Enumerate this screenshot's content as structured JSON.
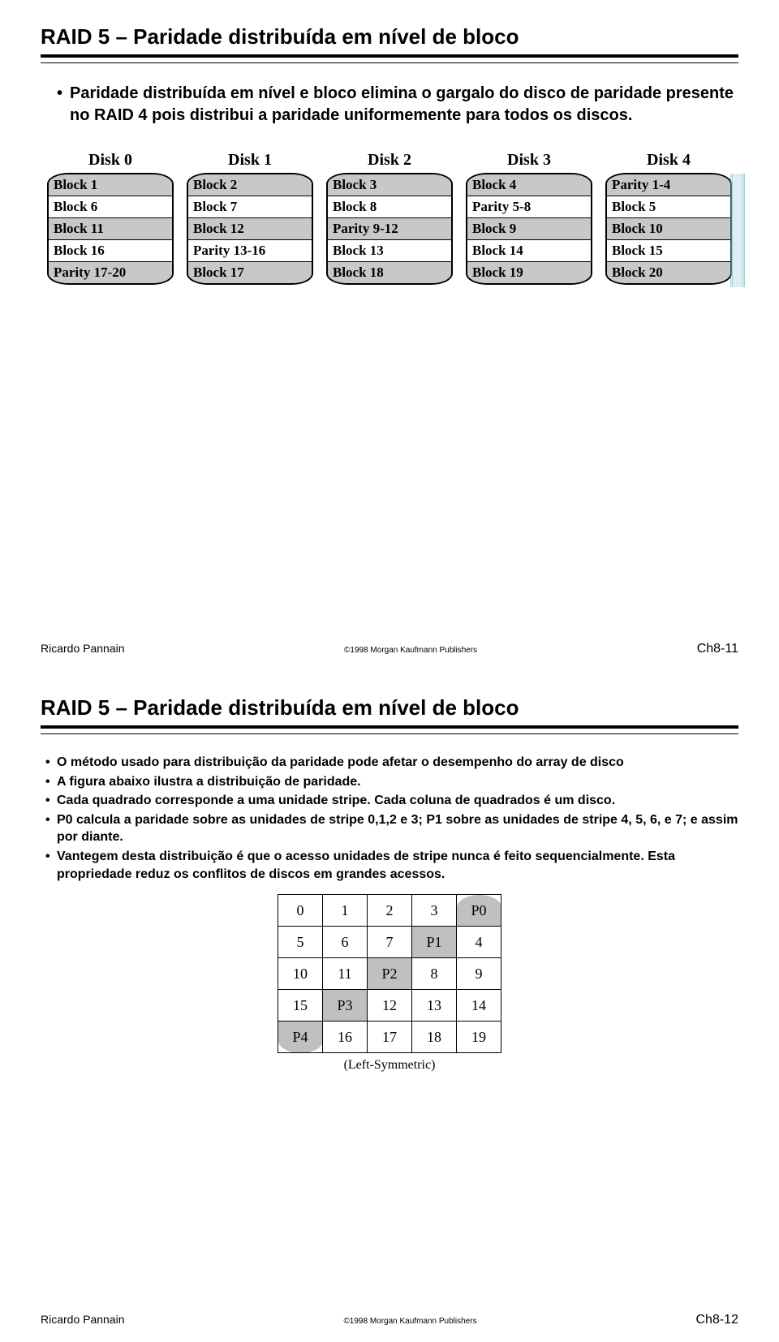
{
  "slide1": {
    "title": "RAID 5 – Paridade distribuída em nível de bloco",
    "bullet": "Paridade distribuída em nível e bloco elimina o gargalo do disco de paridade presente no RAID 4 pois distribui a paridade uniformemente para todos os discos.",
    "disks": [
      {
        "label": "Disk 0",
        "cells": [
          "Block 1",
          "Block 6",
          "Block 11",
          "Block 16",
          "Parity 17-20"
        ],
        "shades": [
          "gray",
          "white",
          "gray",
          "white",
          "gray"
        ]
      },
      {
        "label": "Disk 1",
        "cells": [
          "Block 2",
          "Block 7",
          "Block 12",
          "Parity 13-16",
          "Block 17"
        ],
        "shades": [
          "gray",
          "white",
          "gray",
          "white",
          "gray"
        ]
      },
      {
        "label": "Disk 2",
        "cells": [
          "Block 3",
          "Block 8",
          "Parity 9-12",
          "Block 13",
          "Block 18"
        ],
        "shades": [
          "gray",
          "white",
          "gray",
          "white",
          "gray"
        ]
      },
      {
        "label": "Disk 3",
        "cells": [
          "Block 4",
          "Parity 5-8",
          "Block 9",
          "Block 14",
          "Block 19"
        ],
        "shades": [
          "gray",
          "white",
          "gray",
          "white",
          "gray"
        ]
      },
      {
        "label": "Disk 4",
        "cells": [
          "Parity 1-4",
          "Block 5",
          "Block 10",
          "Block 15",
          "Block 20"
        ],
        "shades": [
          "gray",
          "white",
          "gray",
          "white",
          "gray"
        ]
      }
    ],
    "footer": {
      "author": "Ricardo Pannain",
      "publisher": "©1998 Morgan Kaufmann Publishers",
      "page": "Ch8-11"
    }
  },
  "slide2": {
    "title": "RAID 5 – Paridade distribuída em nível de bloco",
    "bullets": [
      "O método usado para distribuição da paridade pode afetar o desempenho do array de disco",
      "A figura abaixo ilustra a distribuição de paridade.",
      "Cada quadrado corresponde a uma unidade stripe. Cada coluna de quadrados é um disco.",
      "P0 calcula a paridade sobre as unidades de stripe 0,1,2 e 3; P1 sobre as unidades de stripe 4, 5, 6, e 7; e assim por diante.",
      "Vantegem desta distribuição é que o acesso unidades de stripe nunca é feito sequencialmente. Esta propriedade reduz os conflitos de discos em grandes acessos."
    ],
    "grid": {
      "rows": [
        [
          {
            "v": "0"
          },
          {
            "v": "1"
          },
          {
            "v": "2"
          },
          {
            "v": "3"
          },
          {
            "v": "P0",
            "p": true
          }
        ],
        [
          {
            "v": "5"
          },
          {
            "v": "6"
          },
          {
            "v": "7"
          },
          {
            "v": "P1",
            "p": true
          },
          {
            "v": "4"
          }
        ],
        [
          {
            "v": "10"
          },
          {
            "v": "11"
          },
          {
            "v": "P2",
            "p": true
          },
          {
            "v": "8"
          },
          {
            "v": "9"
          }
        ],
        [
          {
            "v": "15"
          },
          {
            "v": "P3",
            "p": true
          },
          {
            "v": "12"
          },
          {
            "v": "13"
          },
          {
            "v": "14"
          }
        ],
        [
          {
            "v": "P4",
            "p": true
          },
          {
            "v": "16"
          },
          {
            "v": "17"
          },
          {
            "v": "18"
          },
          {
            "v": "19"
          }
        ]
      ],
      "caption": "(Left-Symmetric)"
    },
    "footer": {
      "author": "Ricardo Pannain",
      "publisher": "©1998 Morgan Kaufmann Publishers",
      "page": "Ch8-12"
    }
  },
  "colors": {
    "disk_gray": "#c8c8c8",
    "parity_gray": "#c0c0c0",
    "text": "#000000",
    "background": "#ffffff"
  }
}
